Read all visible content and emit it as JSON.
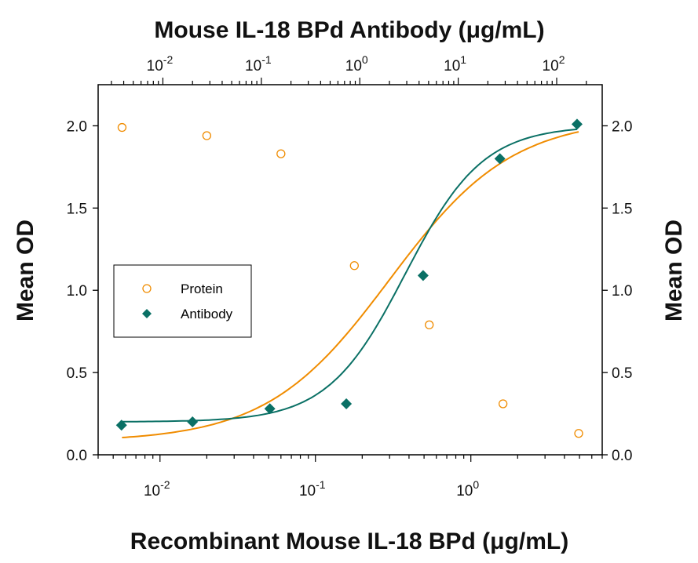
{
  "chart_data": {
    "type": "scatter",
    "title": "Mouse IL-18 BPd Antibody (μg/mL)",
    "xlabel": "Recombinant Mouse IL-18 BPd (μg/mL)",
    "ylabel": "Mean OD",
    "ylabel_right": "Mean OD",
    "x_scale": "log",
    "x_bottom_ticks": [
      "10^-2",
      "10^-1",
      "10^0"
    ],
    "x_top_ticks": [
      "10^-2",
      "10^-1",
      "10^0",
      "10^1",
      "10^2"
    ],
    "y_ticks": [
      "0.0",
      "0.5",
      "1.0",
      "1.5",
      "2.0"
    ],
    "ylim": [
      0,
      2.25
    ],
    "xlim_bottom": [
      0.004,
      7
    ],
    "xlim_top": [
      0.0022,
      290
    ],
    "grid": false,
    "legend_position": "middle-left",
    "series": [
      {
        "name": "Protein",
        "axis": "bottom",
        "marker": "open-circle",
        "color": "#f08c00",
        "x": [
          0.0057,
          0.02,
          0.06,
          0.178,
          0.54,
          1.61,
          4.94
        ],
        "y": [
          1.99,
          1.94,
          1.83,
          1.15,
          0.79,
          0.31,
          0.13
        ],
        "fit": {
          "bottom": 0.08,
          "top": 2.05,
          "ec50": 0.3,
          "hill": 1.1
        }
      },
      {
        "name": "Antibody",
        "axis": "top",
        "marker": "filled-diamond",
        "color": "#0a7065",
        "x": [
          0.0038,
          0.02,
          0.122,
          0.73,
          4.4,
          26.5,
          161
        ],
        "y": [
          0.18,
          0.2,
          0.28,
          0.31,
          1.09,
          1.8,
          2.01
        ],
        "fit": {
          "bottom": 0.2,
          "top": 2.0,
          "ec50": 2.9,
          "hill": 1.1
        }
      }
    ]
  }
}
